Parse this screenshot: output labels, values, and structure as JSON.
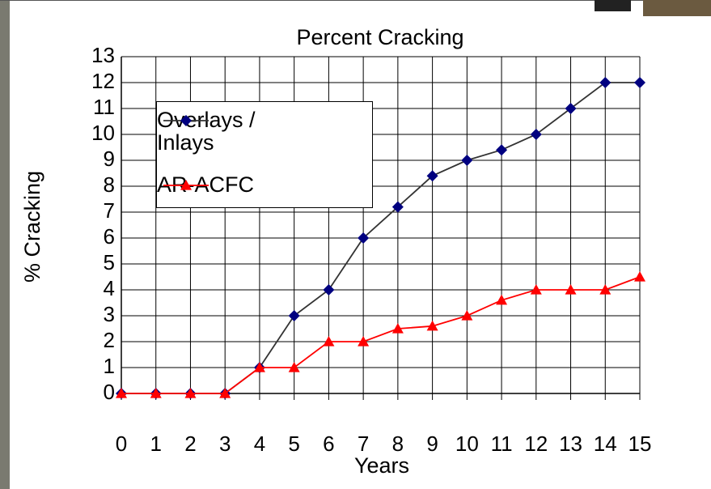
{
  "chart_data": {
    "type": "line",
    "title": "Percent  Cracking",
    "x_label": "Years",
    "y_label": "% Cracking",
    "x": [
      0,
      1,
      2,
      3,
      4,
      5,
      6,
      7,
      8,
      9,
      10,
      11,
      12,
      13,
      14,
      15
    ],
    "series": [
      {
        "name": "Overlays / Inlays",
        "color": "#000080",
        "line_color": "#333333",
        "marker": "diamond",
        "values": [
          0,
          0,
          0,
          0,
          1,
          3,
          4,
          6,
          7.2,
          8.4,
          9,
          9.4,
          10,
          11,
          12,
          12
        ]
      },
      {
        "name": "AR-ACFC",
        "color": "#ff0000",
        "line_color": "#ff0000",
        "marker": "triangle",
        "values": [
          0,
          0,
          0,
          0,
          1,
          1,
          2,
          2,
          2.5,
          2.6,
          3,
          3.6,
          4,
          4,
          4,
          4.5
        ]
      }
    ],
    "xlim": [
      0,
      15
    ],
    "xticks": [
      0,
      1,
      2,
      3,
      4,
      5,
      6,
      7,
      8,
      9,
      10,
      11,
      12,
      13,
      14,
      15
    ],
    "ylim": [
      0,
      13
    ],
    "yticks": [
      0,
      1,
      2,
      3,
      4,
      5,
      6,
      7,
      8,
      9,
      10,
      11,
      12,
      13
    ],
    "grid": true,
    "legend": "upper left"
  }
}
